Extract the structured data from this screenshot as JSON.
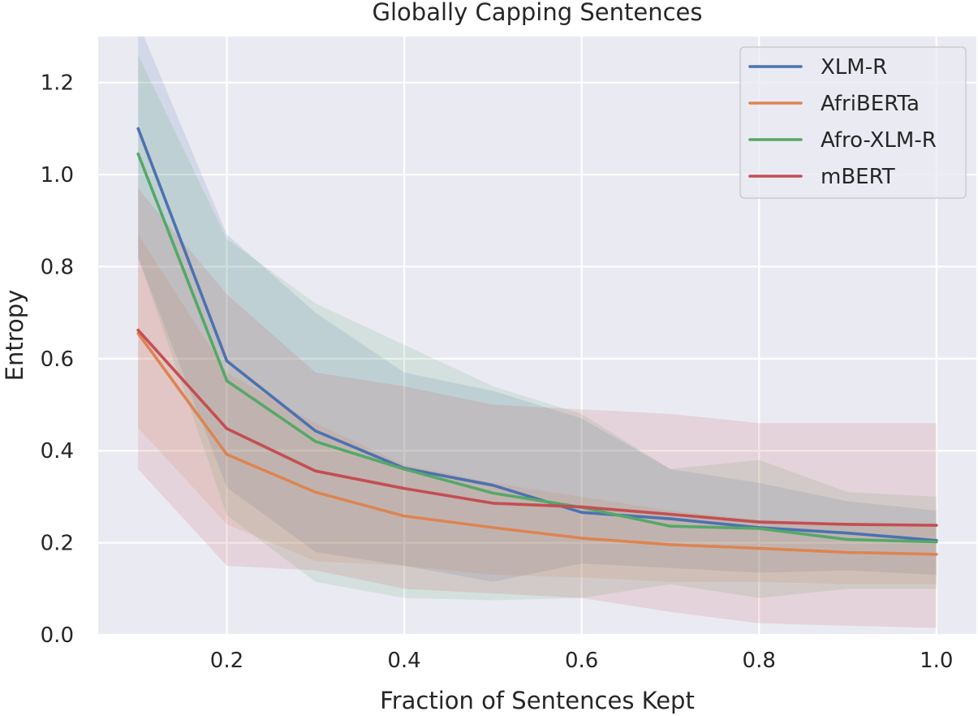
{
  "chart_data": {
    "type": "line",
    "title": "Globally Capping Sentences",
    "xlabel": "Fraction of Sentences Kept",
    "ylabel": "Entropy",
    "xlim": [
      0.055,
      1.045
    ],
    "ylim": [
      0.0,
      1.3
    ],
    "xticks": [
      0.2,
      0.4,
      0.6,
      0.8,
      1.0
    ],
    "xtick_labels": [
      "0.2",
      "0.4",
      "0.6",
      "0.8",
      "1.0"
    ],
    "yticks": [
      0.0,
      0.2,
      0.4,
      0.6,
      0.8,
      1.0,
      1.2
    ],
    "ytick_labels": [
      "0.0",
      "0.2",
      "0.4",
      "0.6",
      "0.8",
      "1.0",
      "1.2"
    ],
    "grid": true,
    "legend_position": "top-right",
    "x": [
      0.1,
      0.2,
      0.3,
      0.4,
      0.5,
      0.6,
      0.7,
      0.8,
      0.9,
      1.0
    ],
    "series": [
      {
        "name": "XLM-R",
        "color": "#4c72b0",
        "values": [
          1.1,
          0.595,
          0.443,
          0.362,
          0.325,
          0.266,
          0.252,
          0.233,
          0.221,
          0.205
        ],
        "upper": [
          1.33,
          0.87,
          0.7,
          0.57,
          0.53,
          0.47,
          0.36,
          0.33,
          0.29,
          0.27
        ],
        "lower": [
          0.82,
          0.32,
          0.18,
          0.15,
          0.115,
          0.155,
          0.145,
          0.135,
          0.14,
          0.13
        ]
      },
      {
        "name": "AfriBERTa",
        "color": "#dd8452",
        "values": [
          0.655,
          0.392,
          0.31,
          0.258,
          0.233,
          0.21,
          0.196,
          0.188,
          0.179,
          0.175
        ],
        "upper": [
          0.87,
          0.57,
          0.46,
          0.37,
          0.33,
          0.3,
          0.27,
          0.25,
          0.24,
          0.24
        ],
        "lower": [
          0.45,
          0.24,
          0.16,
          0.15,
          0.13,
          0.125,
          0.115,
          0.115,
          0.11,
          0.11
        ]
      },
      {
        "name": "Afro-XLM-R",
        "color": "#55a868",
        "values": [
          1.045,
          0.552,
          0.42,
          0.36,
          0.308,
          0.277,
          0.236,
          0.231,
          0.207,
          0.202
        ],
        "upper": [
          1.26,
          0.86,
          0.72,
          0.63,
          0.54,
          0.48,
          0.36,
          0.38,
          0.31,
          0.3
        ],
        "lower": [
          0.82,
          0.26,
          0.115,
          0.08,
          0.075,
          0.08,
          0.11,
          0.08,
          0.1,
          0.1
        ]
      },
      {
        "name": "mBERT",
        "color": "#c44e52",
        "values": [
          0.662,
          0.448,
          0.356,
          0.318,
          0.286,
          0.278,
          0.262,
          0.245,
          0.24,
          0.238
        ],
        "upper": [
          0.97,
          0.74,
          0.57,
          0.54,
          0.5,
          0.49,
          0.48,
          0.46,
          0.46,
          0.46
        ],
        "lower": [
          0.36,
          0.15,
          0.14,
          0.1,
          0.09,
          0.08,
          0.05,
          0.025,
          0.02,
          0.015
        ]
      }
    ]
  }
}
